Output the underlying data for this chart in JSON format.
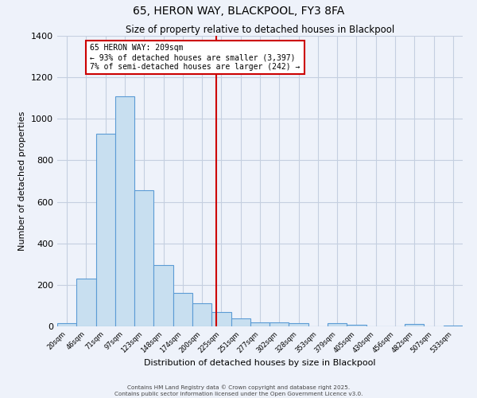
{
  "title": "65, HERON WAY, BLACKPOOL, FY3 8FA",
  "subtitle": "Size of property relative to detached houses in Blackpool",
  "xlabel": "Distribution of detached houses by size in Blackpool",
  "ylabel": "Number of detached properties",
  "bar_labels": [
    "20sqm",
    "46sqm",
    "71sqm",
    "97sqm",
    "123sqm",
    "148sqm",
    "174sqm",
    "200sqm",
    "225sqm",
    "251sqm",
    "277sqm",
    "302sqm",
    "328sqm",
    "353sqm",
    "379sqm",
    "405sqm",
    "430sqm",
    "456sqm",
    "482sqm",
    "507sqm",
    "533sqm"
  ],
  "bar_values": [
    15,
    230,
    930,
    1110,
    655,
    295,
    160,
    110,
    70,
    40,
    20,
    20,
    15,
    0,
    15,
    8,
    0,
    0,
    12,
    0,
    5
  ],
  "bar_color": "#c8dff0",
  "bar_edge_color": "#5b9bd5",
  "bg_color": "#eef2fa",
  "grid_color": "#c5cfe0",
  "vline_x_idx": 7.72,
  "vline_color": "#cc0000",
  "ylim": [
    0,
    1400
  ],
  "yticks": [
    0,
    200,
    400,
    600,
    800,
    1000,
    1200,
    1400
  ],
  "annotation_title": "65 HERON WAY: 209sqm",
  "annotation_line1": "← 93% of detached houses are smaller (3,397)",
  "annotation_line2": "7% of semi-detached houses are larger (242) →",
  "annotation_box_color": "#cc0000",
  "footer_line1": "Contains HM Land Registry data © Crown copyright and database right 2025.",
  "footer_line2": "Contains public sector information licensed under the Open Government Licence v3.0."
}
